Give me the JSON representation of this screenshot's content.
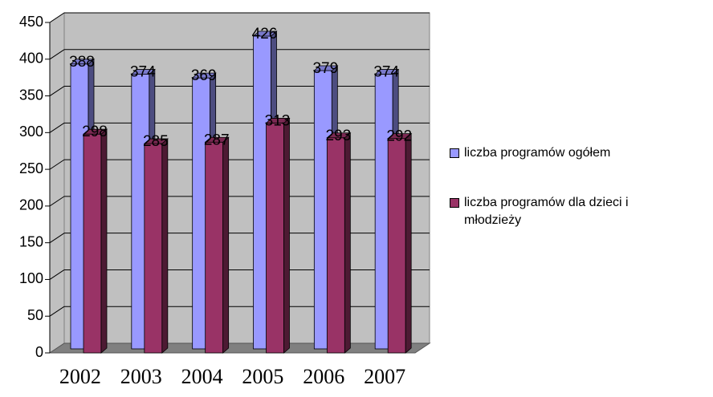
{
  "chart_data": {
    "type": "bar3d",
    "categories": [
      "2002",
      "2003",
      "2004",
      "2005",
      "2006",
      "2007"
    ],
    "series": [
      {
        "name": "liczba programów ogółem",
        "color": "#9999ff",
        "values": [
          388,
          374,
          369,
          426,
          379,
          374
        ]
      },
      {
        "name": "liczba programów dla dzieci i młodzieży",
        "color": "#993366",
        "values": [
          298,
          285,
          287,
          313,
          293,
          292
        ]
      }
    ],
    "ylim": [
      0,
      450
    ],
    "yticks": [
      0,
      50,
      100,
      150,
      200,
      250,
      300,
      350,
      400,
      450
    ],
    "grid": true,
    "legend": "right"
  }
}
